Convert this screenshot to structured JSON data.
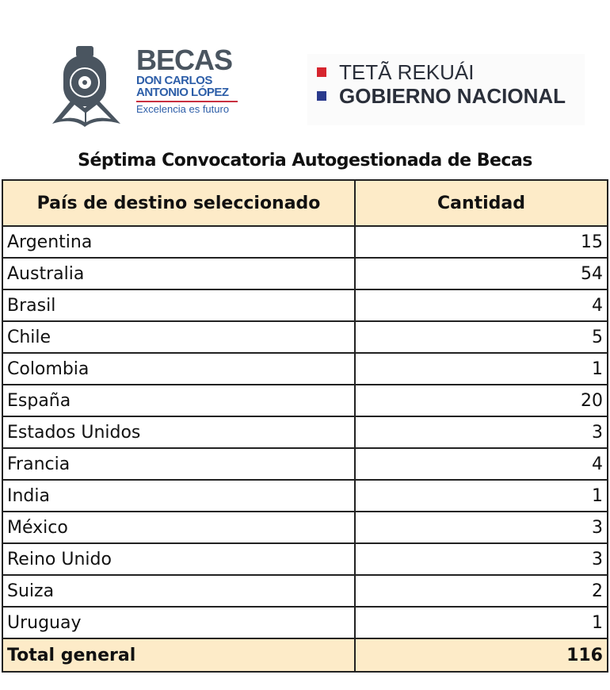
{
  "logos": {
    "becas": {
      "line1": "BECAS",
      "line2": "DON CARLOS",
      "line3": "ANTONIO LÓPEZ",
      "tagline": "Excelencia es futuro"
    },
    "gobierno": {
      "line1": "TETÃ REKUÁI",
      "line2": "GOBIERNO NACIONAL",
      "colors": [
        "#d6252e",
        "#2a3a8c"
      ]
    }
  },
  "title": "Séptima Convocatoria Autogestionada de Becas",
  "table": {
    "headers": [
      "País de destino seleccionado",
      "Cantidad"
    ],
    "rows": [
      {
        "country": "Argentina",
        "count": "15"
      },
      {
        "country": "Australia",
        "count": "54"
      },
      {
        "country": "Brasil",
        "count": "4"
      },
      {
        "country": "Chile",
        "count": "5"
      },
      {
        "country": "Colombia",
        "count": "1"
      },
      {
        "country": "España",
        "count": "20"
      },
      {
        "country": "Estados Unidos",
        "count": "3"
      },
      {
        "country": "Francia",
        "count": "4"
      },
      {
        "country": "India",
        "count": "1"
      },
      {
        "country": "México",
        "count": "3"
      },
      {
        "country": "Reino Unido",
        "count": "3"
      },
      {
        "country": "Suiza",
        "count": "2"
      },
      {
        "country": "Uruguay",
        "count": "1"
      }
    ],
    "total": {
      "label": "Total general",
      "count": "116"
    },
    "header_color": "#fdebc8"
  }
}
